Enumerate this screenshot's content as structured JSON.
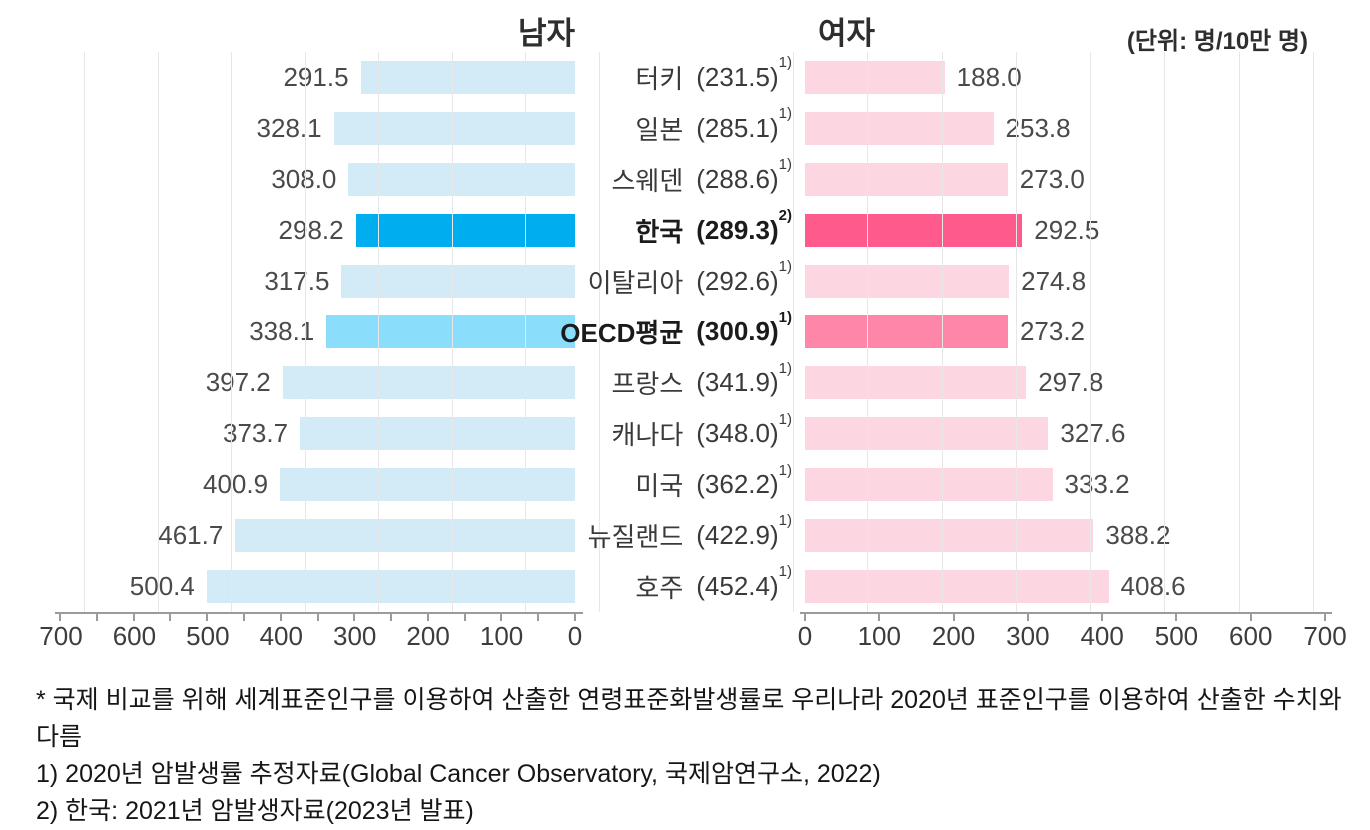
{
  "header": {
    "title_left": "남자",
    "title_right": "여자",
    "unit_label": "(단위: 명/10만 명)"
  },
  "colors": {
    "men_normal": "#d3ebf6",
    "men_korea": "#00aeef",
    "men_oecd": "#8adefc",
    "women_normal": "#fcd7e2",
    "women_korea": "#ff5a8c",
    "women_oecd": "#fe86a9",
    "gridline": "#e7e7e7",
    "axis": "#9b9b9b"
  },
  "chart_data": {
    "type": "bar",
    "layout": "bilateral horizontal bars (men left, women right), country labels with overall rate in center",
    "unit": "명/10만 명",
    "axis": {
      "min": 0,
      "max": 700,
      "label_step": 100,
      "left_minor_tick_step": 50,
      "right_tick_step": 100,
      "left_labels": [
        "700",
        "600",
        "500",
        "400",
        "300",
        "200",
        "100",
        "0"
      ],
      "right_labels": [
        "0",
        "100",
        "200",
        "300",
        "400",
        "500",
        "600",
        "700"
      ]
    },
    "series": [
      {
        "name": "남자",
        "key": "men"
      },
      {
        "name": "여자",
        "key": "women"
      }
    ],
    "rows": [
      {
        "country": "터키",
        "center": 231.5,
        "note": "1)",
        "men": 291.5,
        "women": 188.0,
        "highlight": "none"
      },
      {
        "country": "일본",
        "center": 285.1,
        "note": "1)",
        "men": 328.1,
        "women": 253.8,
        "highlight": "none"
      },
      {
        "country": "스웨덴",
        "center": 288.6,
        "note": "1)",
        "men": 308.0,
        "women": 273.0,
        "highlight": "none"
      },
      {
        "country": "한국",
        "center": 289.3,
        "note": "2)",
        "men": 298.2,
        "women": 292.5,
        "highlight": "korea"
      },
      {
        "country": "이탈리아",
        "center": 292.6,
        "note": "1)",
        "men": 317.5,
        "women": 274.8,
        "highlight": "none"
      },
      {
        "country": "OECD평균",
        "center": 300.9,
        "note": "1)",
        "men": 338.1,
        "women": 273.2,
        "highlight": "oecd"
      },
      {
        "country": "프랑스",
        "center": 341.9,
        "note": "1)",
        "men": 397.2,
        "women": 297.8,
        "highlight": "none"
      },
      {
        "country": "캐나다",
        "center": 348.0,
        "note": "1)",
        "men": 373.7,
        "women": 327.6,
        "highlight": "none"
      },
      {
        "country": "미국",
        "center": 362.2,
        "note": "1)",
        "men": 400.9,
        "women": 333.2,
        "highlight": "none"
      },
      {
        "country": "뉴질랜드",
        "center": 422.9,
        "note": "1)",
        "men": 461.7,
        "women": 388.2,
        "highlight": "none"
      },
      {
        "country": "호주",
        "center": 452.4,
        "note": "1)",
        "men": 500.4,
        "women": 408.6,
        "highlight": "none"
      }
    ]
  },
  "footnotes": [
    "* 국제 비교를 위해 세계표준인구를 이용하여 산출한 연령표준화발생률로 우리나라 2020년 표준인구를 이용하여 산출한 수치와 다름",
    "1) 2020년 암발생률 추정자료(Global Cancer Observatory, 국제암연구소, 2022)",
    "2) 한국: 2021년 암발생자료(2023년 발표)"
  ]
}
